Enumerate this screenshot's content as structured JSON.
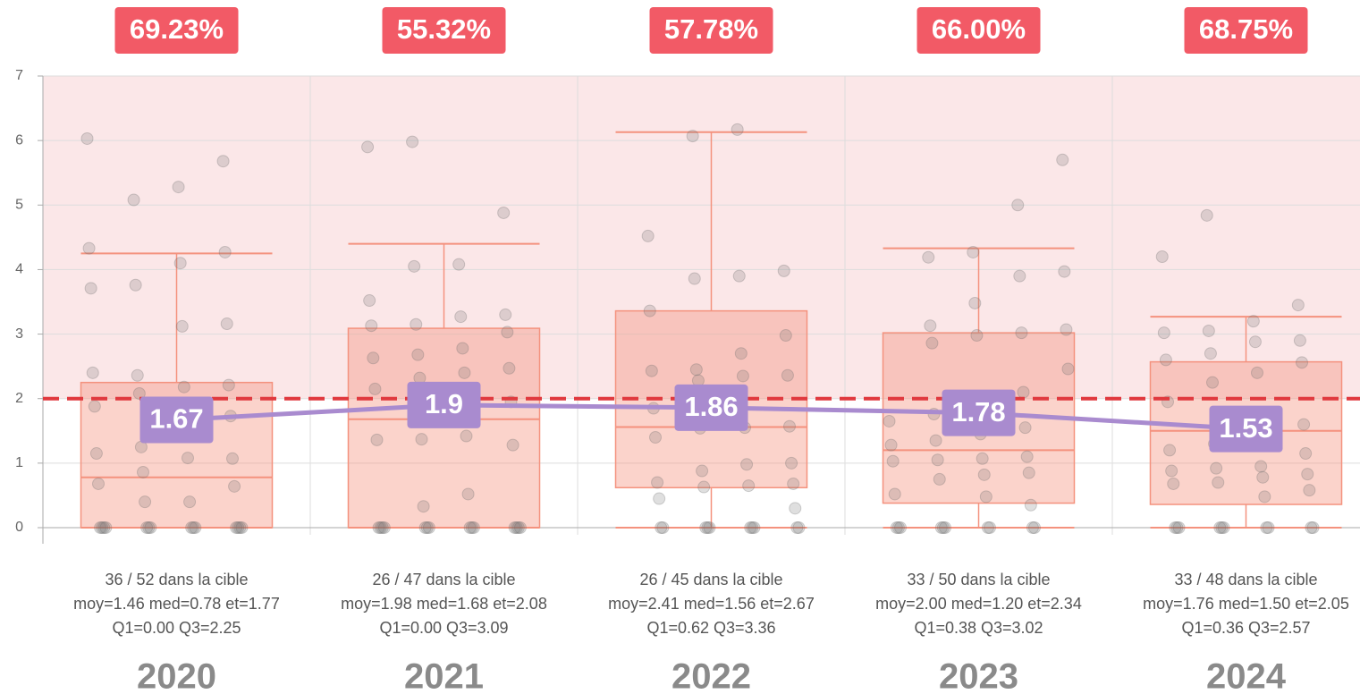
{
  "chart_data": {
    "type": "box",
    "categories": [
      "2020",
      "2021",
      "2022",
      "2023",
      "2024"
    ],
    "header_labels": [
      "69.23%",
      "55.32%",
      "57.78%",
      "66.00%",
      "68.75%"
    ],
    "stats": [
      [
        "36 / 52 dans la cible",
        "moy=1.46 med=0.78 et=1.77",
        "Q1=0.00 Q3=2.25"
      ],
      [
        "26 / 47 dans la cible",
        "moy=1.98 med=1.68 et=2.08",
        "Q1=0.00 Q3=3.09"
      ],
      [
        "26 / 45 dans la cible",
        "moy=2.41 med=1.56 et=2.67",
        "Q1=0.62 Q3=3.36"
      ],
      [
        "33 / 50 dans la cible",
        "moy=2.00 med=1.20 et=2.34",
        "Q1=0.38 Q3=3.02"
      ],
      [
        "33 / 48 dans la cible",
        "moy=1.76 med=1.50 et=2.05",
        "Q1=0.36 Q3=2.57"
      ]
    ],
    "boxes": [
      {
        "whisker_low": 0,
        "q1": 0,
        "median": 0.78,
        "q3": 2.25,
        "whisker_high": 4.25
      },
      {
        "whisker_low": 0,
        "q1": 0,
        "median": 1.68,
        "q3": 3.09,
        "whisker_high": 4.4
      },
      {
        "whisker_low": 0,
        "q1": 0.62,
        "median": 1.56,
        "q3": 3.36,
        "whisker_high": 6.13
      },
      {
        "whisker_low": 0,
        "q1": 0.38,
        "median": 1.2,
        "q3": 3.02,
        "whisker_high": 4.33
      },
      {
        "whisker_low": 0,
        "q1": 0.36,
        "median": 1.5,
        "q3": 2.57,
        "whisker_high": 3.27
      }
    ],
    "box_color": "#f4927e",
    "means": [
      1.67,
      1.9,
      1.86,
      1.78,
      1.53
    ],
    "mean_color": "#a98bcf",
    "target": 2,
    "target_color": "#e0393e",
    "points": [
      [
        6.03,
        5.68,
        5.28,
        5.08,
        4.33,
        4.27,
        4.1,
        3.76,
        3.71,
        3.16,
        3.12,
        2.36,
        2.4,
        2.21,
        2.18,
        2.08,
        1.88,
        1.73,
        1.5,
        1.25,
        1.15,
        1.07,
        1.08,
        0.86,
        0.68,
        0.64,
        0.4,
        0.4,
        0,
        0,
        0,
        0,
        0,
        0,
        0,
        0,
        0,
        0,
        0,
        0,
        0,
        0
      ],
      [
        5.98,
        5.9,
        4.88,
        4.08,
        4.05,
        3.52,
        3.3,
        3.27,
        3.15,
        3.13,
        3.03,
        2.78,
        2.68,
        2.63,
        2.47,
        2.4,
        2.32,
        2.15,
        1.95,
        1.42,
        1.37,
        1.36,
        1.28,
        0.52,
        0.33,
        0,
        0,
        0,
        0,
        0,
        0,
        0,
        0,
        0,
        0,
        0,
        0,
        0,
        0
      ],
      [
        6.17,
        6.07,
        4.52,
        3.98,
        3.9,
        3.86,
        3.36,
        2.98,
        2.7,
        2.45,
        2.43,
        2.36,
        2.35,
        2.28,
        1.85,
        1.57,
        1.55,
        1.54,
        1.4,
        1.0,
        0.98,
        0.88,
        0.7,
        0.68,
        0.65,
        0.63,
        0.45,
        0.3,
        0,
        0,
        0,
        0,
        0,
        0,
        0,
        0,
        0,
        0
      ],
      [
        5.7,
        5.0,
        4.27,
        4.19,
        3.97,
        3.9,
        3.48,
        3.13,
        3.07,
        3.02,
        2.98,
        2.86,
        2.46,
        2.1,
        1.78,
        1.76,
        1.65,
        1.55,
        1.45,
        1.35,
        1.28,
        1.1,
        1.07,
        1.05,
        1.03,
        0.85,
        0.82,
        0.75,
        0.52,
        0.35,
        0.48,
        0,
        0,
        0,
        0,
        0,
        0,
        0,
        0,
        0,
        0
      ],
      [
        4.84,
        4.2,
        3.45,
        3.2,
        3.05,
        3.02,
        2.9,
        2.88,
        2.7,
        2.6,
        2.56,
        2.4,
        2.25,
        1.95,
        1.6,
        1.58,
        1.3,
        1.2,
        1.15,
        0.95,
        0.92,
        0.88,
        0.83,
        0.78,
        0.7,
        0.68,
        0.58,
        0.48,
        0,
        0,
        0,
        0,
        0,
        0,
        0,
        0,
        0,
        0
      ]
    ],
    "ylim": [
      0,
      7
    ],
    "yticks": [
      0,
      1,
      2,
      3,
      4,
      5,
      6,
      7
    ],
    "grid": true
  }
}
